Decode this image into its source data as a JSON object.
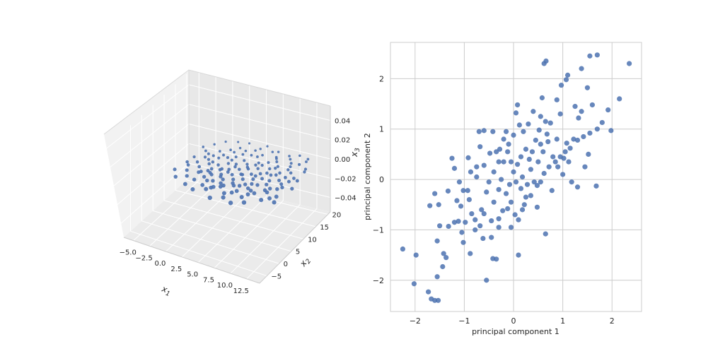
{
  "chart_data": [
    {
      "type": "scatter",
      "projection": "3d",
      "xlabel": "x1",
      "ylabel": "x2",
      "zlabel": "x3",
      "xlim": [
        -6.5,
        14.5
      ],
      "ylim": [
        -8,
        21
      ],
      "zlim": [
        -0.055,
        0.055
      ],
      "x_ticks": [
        "−5.0",
        "−2.5",
        "0.0",
        "2.5",
        "5.0",
        "7.5",
        "10.0",
        "12.5"
      ],
      "y_ticks": [
        "−5",
        "0",
        "5",
        "10",
        "15",
        "20"
      ],
      "z_ticks": [
        "−0.04",
        "−0.02",
        "0.00",
        "0.02",
        "0.04"
      ],
      "marker_color": "#4c72b0",
      "grid": true,
      "points": [
        {
          "x": -2.5,
          "y": 3.0
        },
        {
          "x": -1.8,
          "y": 9.5
        },
        {
          "x": -1.5,
          "y": 6.0
        },
        {
          "x": -1.0,
          "y": 4.0
        },
        {
          "x": -0.8,
          "y": 8.0
        },
        {
          "x": -0.5,
          "y": 12.0
        },
        {
          "x": -0.3,
          "y": 2.0
        },
        {
          "x": 0.0,
          "y": 6.5
        },
        {
          "x": 0.2,
          "y": 10.0
        },
        {
          "x": 0.5,
          "y": 14.0
        },
        {
          "x": 0.6,
          "y": 4.5
        },
        {
          "x": 0.8,
          "y": 8.5
        },
        {
          "x": 1.0,
          "y": 1.5
        },
        {
          "x": 1.2,
          "y": 11.5
        },
        {
          "x": 1.5,
          "y": 6.0
        },
        {
          "x": 1.6,
          "y": 15.5
        },
        {
          "x": 1.8,
          "y": 3.5
        },
        {
          "x": 2.0,
          "y": 9.0
        },
        {
          "x": 2.2,
          "y": 12.5
        },
        {
          "x": 2.4,
          "y": 5.0
        },
        {
          "x": 2.5,
          "y": 17.0
        },
        {
          "x": 2.6,
          "y": 0.5
        },
        {
          "x": 2.8,
          "y": 7.5
        },
        {
          "x": 3.0,
          "y": 10.5
        },
        {
          "x": 3.1,
          "y": 13.5
        },
        {
          "x": 3.3,
          "y": 3.0
        },
        {
          "x": 3.5,
          "y": 6.0
        },
        {
          "x": 3.6,
          "y": 15.0
        },
        {
          "x": 3.8,
          "y": 8.5
        },
        {
          "x": 4.0,
          "y": 11.0
        },
        {
          "x": 4.1,
          "y": 1.0
        },
        {
          "x": 4.3,
          "y": 4.5
        },
        {
          "x": 4.5,
          "y": 13.0
        },
        {
          "x": 4.6,
          "y": 17.5
        },
        {
          "x": 4.8,
          "y": 7.0
        },
        {
          "x": 5.0,
          "y": 9.5
        },
        {
          "x": 5.1,
          "y": 2.5
        },
        {
          "x": 5.3,
          "y": 12.0
        },
        {
          "x": 5.5,
          "y": 5.5
        },
        {
          "x": 5.6,
          "y": 15.5
        },
        {
          "x": 5.8,
          "y": 8.0
        },
        {
          "x": 6.0,
          "y": 10.5
        },
        {
          "x": 6.1,
          "y": 0.0
        },
        {
          "x": 6.3,
          "y": 3.5
        },
        {
          "x": 6.5,
          "y": 13.5
        },
        {
          "x": 6.6,
          "y": 6.5
        },
        {
          "x": 6.8,
          "y": 18.5
        },
        {
          "x": 7.0,
          "y": 9.0
        },
        {
          "x": 7.1,
          "y": 11.5
        },
        {
          "x": 7.3,
          "y": 2.0
        },
        {
          "x": 7.5,
          "y": 5.0
        },
        {
          "x": 7.6,
          "y": 14.5
        },
        {
          "x": 7.8,
          "y": 7.5
        },
        {
          "x": 8.0,
          "y": 10.0
        },
        {
          "x": 8.1,
          "y": 16.5
        },
        {
          "x": 8.3,
          "y": 4.0
        },
        {
          "x": 8.5,
          "y": 12.5
        },
        {
          "x": 8.6,
          "y": 0.5
        },
        {
          "x": 8.8,
          "y": 8.5
        },
        {
          "x": 9.0,
          "y": 6.0
        },
        {
          "x": 9.2,
          "y": 14.0
        },
        {
          "x": 9.4,
          "y": 10.5
        },
        {
          "x": 9.6,
          "y": 3.0
        },
        {
          "x": 9.8,
          "y": 17.5
        },
        {
          "x": 10.0,
          "y": 7.0
        },
        {
          "x": 10.2,
          "y": 12.0
        },
        {
          "x": 10.5,
          "y": 5.0
        },
        {
          "x": 10.7,
          "y": 15.0
        },
        {
          "x": 11.0,
          "y": 9.5
        },
        {
          "x": 11.2,
          "y": 1.5
        },
        {
          "x": 11.5,
          "y": 13.0
        },
        {
          "x": 11.8,
          "y": 6.5
        },
        {
          "x": 12.0,
          "y": 18.0
        },
        {
          "x": 12.3,
          "y": 10.0
        },
        {
          "x": 12.6,
          "y": 4.0
        },
        {
          "x": 13.0,
          "y": 14.5
        },
        {
          "x": 0.5,
          "y": -1.0
        },
        {
          "x": 2.0,
          "y": -2.0
        },
        {
          "x": 3.5,
          "y": -0.5
        },
        {
          "x": 5.0,
          "y": -3.0
        },
        {
          "x": 6.5,
          "y": -1.5
        },
        {
          "x": 8.0,
          "y": -2.5
        },
        {
          "x": -1.5,
          "y": 0.5
        },
        {
          "x": 9.5,
          "y": -1.0
        },
        {
          "x": 1.5,
          "y": 19.0
        },
        {
          "x": 3.0,
          "y": 19.5
        },
        {
          "x": 5.5,
          "y": 20.0
        },
        {
          "x": 7.5,
          "y": 19.0
        },
        {
          "x": -2.0,
          "y": 14.0
        },
        {
          "x": -1.0,
          "y": 16.0
        },
        {
          "x": 0.0,
          "y": 18.0
        },
        {
          "x": 10.5,
          "y": 19.5
        },
        {
          "x": 11.5,
          "y": 16.5
        },
        {
          "x": 12.5,
          "y": 11.5
        },
        {
          "x": 13.5,
          "y": 8.0
        },
        {
          "x": 13.0,
          "y": 2.0
        },
        {
          "x": 4.0,
          "y": 7.5
        },
        {
          "x": 4.5,
          "y": 3.0
        },
        {
          "x": 6.0,
          "y": 8.0
        },
        {
          "x": 7.0,
          "y": 4.0
        },
        {
          "x": 2.0,
          "y": 5.5
        },
        {
          "x": 1.0,
          "y": 9.5
        },
        {
          "x": 3.0,
          "y": 12.0
        },
        {
          "x": 8.5,
          "y": 15.5
        },
        {
          "x": 9.0,
          "y": 2.0
        },
        {
          "x": 10.0,
          "y": 11.0
        },
        {
          "x": 11.0,
          "y": 4.5
        },
        {
          "x": 6.0,
          "y": 16.5
        },
        {
          "x": 5.0,
          "y": 18.5
        },
        {
          "x": 3.5,
          "y": 16.5
        },
        {
          "x": -0.5,
          "y": 10.5
        },
        {
          "x": -2.0,
          "y": 7.0
        },
        {
          "x": 0.8,
          "y": 5.0
        },
        {
          "x": 2.6,
          "y": 2.5
        },
        {
          "x": 4.2,
          "y": 10.0
        },
        {
          "x": 5.7,
          "y": 11.0
        },
        {
          "x": 7.2,
          "y": 13.0
        },
        {
          "x": 8.7,
          "y": 10.8
        },
        {
          "x": 9.9,
          "y": 8.5
        },
        {
          "x": 11.4,
          "y": 11.0
        },
        {
          "x": 12.2,
          "y": 7.5
        },
        {
          "x": 12.8,
          "y": 15.5
        },
        {
          "x": 6.9,
          "y": 1.0
        },
        {
          "x": 3.9,
          "y": 0.5
        },
        {
          "x": 1.4,
          "y": 13.0
        },
        {
          "x": -1.2,
          "y": 12.8
        },
        {
          "x": 2.3,
          "y": 15.0
        },
        {
          "x": 4.7,
          "y": 15.5
        },
        {
          "x": 7.9,
          "y": 17.0
        },
        {
          "x": 9.3,
          "y": 18.5
        },
        {
          "x": 10.8,
          "y": 13.8
        },
        {
          "x": 12.0,
          "y": 2.8
        },
        {
          "x": 8.2,
          "y": 5.8
        },
        {
          "x": 5.9,
          "y": 4.2
        },
        {
          "x": 3.7,
          "y": 5.2
        },
        {
          "x": 1.7,
          "y": 7.0
        },
        {
          "x": 0.3,
          "y": 11.8
        },
        {
          "x": 6.4,
          "y": 12.5
        },
        {
          "x": 9.1,
          "y": 13.2
        },
        {
          "x": 10.4,
          "y": 16.2
        },
        {
          "x": 11.9,
          "y": 19.0
        },
        {
          "x": 13.2,
          "y": 11.0
        },
        {
          "x": 4.9,
          "y": 1.8
        },
        {
          "x": 2.9,
          "y": 8.0
        },
        {
          "x": 7.7,
          "y": 8.8
        },
        {
          "x": 8.9,
          "y": 3.5
        },
        {
          "x": 10.9,
          "y": 6.0
        },
        {
          "x": 11.7,
          "y": 8.5
        }
      ]
    },
    {
      "type": "scatter",
      "xlabel": "principal component 1",
      "ylabel": "principal component 2",
      "xlim": [
        -2.5,
        2.6
      ],
      "ylim": [
        -2.62,
        2.72
      ],
      "x_ticks": [
        -2,
        -1,
        0,
        1,
        2
      ],
      "y_ticks": [
        -2,
        -1,
        0,
        1,
        2
      ],
      "x_tick_labels": [
        "−2",
        "−1",
        "0",
        "1",
        "2"
      ],
      "y_tick_labels": [
        "−2",
        "−1",
        "0",
        "1",
        "2"
      ],
      "marker_color": "#4c72b0",
      "grid": true,
      "points": [
        [
          -2.25,
          -1.38
        ],
        [
          -1.98,
          -1.5
        ],
        [
          -2.02,
          -2.07
        ],
        [
          -1.73,
          -2.23
        ],
        [
          -1.67,
          -2.37
        ],
        [
          -1.6,
          -2.4
        ],
        [
          -1.53,
          -2.4
        ],
        [
          -1.55,
          -1.93
        ],
        [
          -1.44,
          -1.73
        ],
        [
          -1.37,
          -1.55
        ],
        [
          -1.42,
          -1.47
        ],
        [
          -1.55,
          -1.22
        ],
        [
          -1.5,
          -0.92
        ],
        [
          -1.32,
          -0.93
        ],
        [
          -1.2,
          -0.85
        ],
        [
          -1.05,
          -1.05
        ],
        [
          -1.12,
          -0.83
        ],
        [
          -1.07,
          -0.53
        ],
        [
          -1.02,
          -1.25
        ],
        [
          -0.88,
          -1.47
        ],
        [
          -0.78,
          -1.0
        ],
        [
          -0.78,
          -0.8
        ],
        [
          -0.68,
          -0.92
        ],
        [
          -0.62,
          -1.17
        ],
        [
          -0.6,
          -0.68
        ],
        [
          -0.55,
          -2.0
        ],
        [
          -0.42,
          -1.57
        ],
        [
          -0.35,
          -1.58
        ],
        [
          -0.45,
          -0.82
        ],
        [
          -0.3,
          -0.78
        ],
        [
          -0.22,
          -0.62
        ],
        [
          -0.12,
          -0.58
        ],
        [
          -0.05,
          -0.45
        ],
        [
          0.03,
          -0.7
        ],
        [
          0.1,
          -0.8
        ],
        [
          0.22,
          -0.5
        ],
        [
          0.35,
          -0.32
        ],
        [
          0.48,
          -0.12
        ],
        [
          0.55,
          -0.05
        ],
        [
          0.62,
          0.12
        ],
        [
          0.72,
          0.25
        ],
        [
          0.85,
          0.35
        ],
        [
          0.95,
          0.45
        ],
        [
          1.05,
          0.55
        ],
        [
          1.15,
          0.62
        ],
        [
          1.3,
          0.78
        ],
        [
          1.42,
          0.85
        ],
        [
          1.55,
          0.92
        ],
        [
          1.7,
          1.0
        ],
        [
          1.98,
          0.97
        ],
        [
          1.3,
          -0.15
        ],
        [
          1.68,
          -0.13
        ],
        [
          0.65,
          -1.08
        ],
        [
          -1.6,
          -0.28
        ],
        [
          -1.7,
          -0.52
        ],
        [
          -1.52,
          -0.5
        ],
        [
          -1.33,
          -0.23
        ],
        [
          -1.1,
          -0.05
        ],
        [
          -0.93,
          -0.22
        ],
        [
          -0.87,
          0.15
        ],
        [
          -0.75,
          0.25
        ],
        [
          -0.68,
          0.65
        ],
        [
          -0.6,
          0.97
        ],
        [
          -0.7,
          0.95
        ],
        [
          -0.48,
          0.52
        ],
        [
          -0.42,
          0.95
        ],
        [
          -0.35,
          0.55
        ],
        [
          -0.3,
          0.35
        ],
        [
          -0.2,
          0.8
        ],
        [
          -0.15,
          0.95
        ],
        [
          -0.1,
          0.7
        ],
        [
          0.0,
          0.88
        ],
        [
          0.05,
          1.32
        ],
        [
          0.12,
          1.08
        ],
        [
          0.08,
          1.48
        ],
        [
          0.2,
          0.95
        ],
        [
          0.3,
          1.1
        ],
        [
          0.4,
          1.35
        ],
        [
          0.55,
          1.25
        ],
        [
          0.65,
          1.15
        ],
        [
          0.75,
          1.12
        ],
        [
          0.58,
          1.62
        ],
        [
          0.62,
          2.3
        ],
        [
          0.66,
          2.35
        ],
        [
          0.88,
          1.58
        ],
        [
          0.95,
          1.3
        ],
        [
          0.97,
          1.87
        ],
        [
          1.07,
          1.98
        ],
        [
          1.1,
          2.07
        ],
        [
          1.25,
          1.45
        ],
        [
          1.32,
          1.22
        ],
        [
          1.38,
          1.35
        ],
        [
          1.5,
          1.82
        ],
        [
          1.52,
          0.5
        ],
        [
          1.6,
          1.48
        ],
        [
          1.8,
          1.13
        ],
        [
          1.92,
          1.38
        ],
        [
          2.15,
          1.6
        ],
        [
          2.35,
          2.3
        ],
        [
          1.38,
          2.2
        ],
        [
          1.55,
          2.45
        ],
        [
          1.7,
          2.47
        ],
        [
          -1.25,
          0.42
        ],
        [
          -1.2,
          0.22
        ],
        [
          -1.02,
          -0.22
        ],
        [
          -0.92,
          0.43
        ],
        [
          -0.85,
          -0.68
        ],
        [
          -0.65,
          -0.6
        ],
        [
          -0.55,
          -0.25
        ],
        [
          -0.5,
          -0.05
        ],
        [
          -0.4,
          0.15
        ],
        [
          -0.3,
          -0.2
        ],
        [
          -0.25,
          0.0
        ],
        [
          -0.15,
          -0.28
        ],
        [
          -0.08,
          -0.1
        ],
        [
          0.0,
          0.15
        ],
        [
          0.08,
          0.3
        ],
        [
          0.15,
          0.45
        ],
        [
          0.25,
          0.6
        ],
        [
          0.35,
          0.2
        ],
        [
          0.42,
          -0.05
        ],
        [
          0.5,
          0.35
        ],
        [
          0.6,
          0.55
        ],
        [
          0.7,
          0.75
        ],
        [
          0.8,
          0.45
        ],
        [
          0.9,
          0.25
        ],
        [
          1.0,
          0.1
        ],
        [
          1.12,
          0.35
        ],
        [
          1.22,
          0.8
        ],
        [
          0.28,
          -0.1
        ],
        [
          0.18,
          0.05
        ],
        [
          -0.05,
          0.35
        ],
        [
          -0.12,
          0.55
        ],
        [
          -0.2,
          0.35
        ],
        [
          -0.28,
          0.6
        ],
        [
          0.05,
          -0.05
        ],
        [
          0.15,
          -0.18
        ],
        [
          0.25,
          -0.35
        ],
        [
          0.38,
          0.55
        ],
        [
          0.45,
          0.78
        ],
        [
          0.52,
          0.98
        ],
        [
          0.68,
          0.9
        ],
        [
          -0.6,
          0.28
        ],
        [
          -0.75,
          0.05
        ],
        [
          -0.9,
          -0.4
        ],
        [
          -1.15,
          -0.42
        ],
        [
          -0.98,
          -0.85
        ],
        [
          -0.3,
          -0.95
        ],
        [
          -0.45,
          -1.15
        ],
        [
          0.1,
          -1.5
        ],
        [
          -0.05,
          -0.95
        ],
        [
          0.18,
          -0.6
        ],
        [
          0.48,
          -0.55
        ],
        [
          0.78,
          -0.22
        ],
        [
          1.02,
          0.42
        ],
        [
          1.18,
          -0.05
        ],
        [
          1.45,
          0.25
        ],
        [
          0.88,
          0.8
        ],
        [
          1.08,
          0.72
        ],
        [
          0.55,
          0.7
        ],
        [
          0.32,
          0.4
        ],
        [
          -0.4,
          -0.45
        ]
      ]
    }
  ]
}
